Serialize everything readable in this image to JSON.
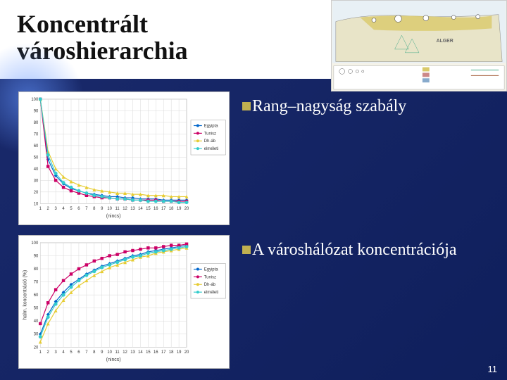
{
  "slide": {
    "title": "Koncentrált városhierarchia",
    "page_number": "11",
    "background_colors": [
      "#1a2a6c",
      "#0f1f5c"
    ]
  },
  "bullets": [
    {
      "marker_color": "#c0b050",
      "text": "Rang–nagyság szabály"
    },
    {
      "marker_color": "#c0b050",
      "text": "A városhálózat koncentrációja"
    }
  ],
  "map": {
    "type": "infographic",
    "region": "North Africa (Algeria)",
    "background_color": "#f5f3e8",
    "land_color": "#e8e4c8",
    "highlight_color": "#d9c96a",
    "border_color": "#888888",
    "legend_present": true
  },
  "chart_top": {
    "type": "line",
    "title": "",
    "x_axis": {
      "label": "(nincs)",
      "ticks": [
        1,
        2,
        3,
        4,
        5,
        6,
        7,
        8,
        9,
        10,
        11,
        12,
        13,
        14,
        15,
        16,
        17,
        18,
        19,
        20
      ],
      "xlim": [
        1,
        20
      ]
    },
    "y_axis": {
      "label": "",
      "ticks": [
        10,
        20,
        30,
        40,
        50,
        60,
        70,
        80,
        90,
        100
      ],
      "ylim": [
        10,
        100
      ]
    },
    "grid_color": "#d9d9d9",
    "background_color": "#ffffff",
    "line_width": 1.2,
    "marker_size": 2.5,
    "series": [
      {
        "name": "Egyipta",
        "color": "#0066cc",
        "marker": "diamond",
        "values": [
          100,
          48,
          34,
          27,
          23,
          21,
          19,
          18,
          17,
          16,
          16,
          15,
          15,
          14,
          14,
          14,
          13,
          13,
          13,
          13
        ]
      },
      {
        "name": "Tunisz",
        "color": "#cc0066",
        "marker": "square",
        "values": [
          100,
          42,
          30,
          24,
          21,
          19,
          17,
          16,
          15,
          15,
          14,
          14,
          13,
          13,
          13,
          13,
          12,
          12,
          12,
          12
        ]
      },
      {
        "name": "Dh-áb",
        "color": "#e6cc33",
        "marker": "triangle",
        "values": [
          100,
          55,
          40,
          33,
          29,
          26,
          24,
          22,
          21,
          20,
          19,
          19,
          18,
          18,
          17,
          17,
          17,
          16,
          16,
          16
        ]
      },
      {
        "name": "elméleti",
        "color": "#33cccc",
        "marker": "circle",
        "values": [
          100,
          52,
          36,
          28,
          24,
          21,
          19,
          17,
          16,
          15,
          14,
          14,
          13,
          13,
          12,
          12,
          12,
          12,
          11,
          11
        ]
      }
    ],
    "legend": {
      "position": "right",
      "border_color": "#999",
      "background_color": "#fff",
      "fontsize": 6
    }
  },
  "chart_bottom": {
    "type": "line",
    "title": "",
    "x_axis": {
      "label": "(nincs)",
      "ticks": [
        1,
        2,
        3,
        4,
        5,
        6,
        7,
        8,
        9,
        10,
        11,
        12,
        13,
        14,
        15,
        16,
        17,
        18,
        19,
        20
      ],
      "xlim": [
        1,
        20
      ]
    },
    "y_axis": {
      "label": "halm. koncentráció (%)",
      "ticks": [
        20,
        30,
        40,
        50,
        60,
        70,
        80,
        90,
        100
      ],
      "ylim": [
        20,
        100
      ],
      "label_fontsize": 7
    },
    "grid_color": "#d9d9d9",
    "background_color": "#ffffff",
    "line_width": 1.2,
    "marker_size": 2.5,
    "series": [
      {
        "name": "Egyipta",
        "color": "#0066cc",
        "marker": "diamond",
        "values": [
          30,
          45,
          55,
          62,
          68,
          72,
          76,
          79,
          82,
          84,
          86,
          88,
          90,
          91,
          93,
          94,
          95,
          96,
          97,
          98
        ]
      },
      {
        "name": "Tunisz",
        "color": "#cc0066",
        "marker": "square",
        "values": [
          38,
          54,
          64,
          71,
          76,
          80,
          83,
          86,
          88,
          90,
          91,
          93,
          94,
          95,
          96,
          96,
          97,
          98,
          98,
          99
        ]
      },
      {
        "name": "Dh-áb",
        "color": "#e6cc33",
        "marker": "triangle",
        "values": [
          24,
          38,
          48,
          56,
          62,
          67,
          71,
          75,
          78,
          81,
          83,
          85,
          87,
          89,
          90,
          92,
          93,
          94,
          95,
          96
        ]
      },
      {
        "name": "elméleti",
        "color": "#33cccc",
        "marker": "circle",
        "values": [
          28,
          43,
          53,
          60,
          66,
          71,
          75,
          78,
          81,
          83,
          85,
          87,
          89,
          90,
          92,
          93,
          94,
          95,
          96,
          97
        ]
      }
    ],
    "legend": {
      "position": "right",
      "border_color": "#999",
      "background_color": "#fff",
      "fontsize": 6
    }
  }
}
